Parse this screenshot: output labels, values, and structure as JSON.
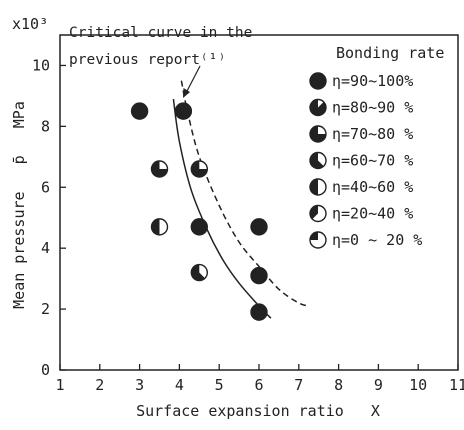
{
  "chart_data": {
    "type": "scatter",
    "exponent_label": "x10³",
    "xlabel": "Surface expansion ratio   X",
    "ylabel": "Mean pressure   p̄   MPa",
    "xlim": [
      1,
      11
    ],
    "ylim": [
      0,
      11
    ],
    "xticks": [
      "1",
      "2",
      "3",
      "4",
      "5",
      "6",
      "7",
      "8",
      "9",
      "10",
      "11"
    ],
    "yticks": [
      "0",
      "2",
      "4",
      "6",
      "8",
      "10"
    ],
    "annotation": [
      "Critical curve in the",
      "previous report⁽¹⁾"
    ],
    "legend_title": "Bonding rate",
    "series": [
      {
        "name": "η=90~100%",
        "fill": 1.0,
        "points": [
          [
            3.0,
            8.5
          ],
          [
            4.1,
            8.5
          ],
          [
            4.5,
            4.7
          ],
          [
            6.0,
            4.7
          ],
          [
            6.0,
            3.1
          ],
          [
            6.0,
            1.9
          ]
        ]
      },
      {
        "name": "η=80~90 %",
        "fill": 0.875,
        "points": []
      },
      {
        "name": "η=70~80 %",
        "fill": 0.75,
        "points": [
          [
            3.5,
            6.6
          ],
          [
            4.5,
            6.6
          ]
        ]
      },
      {
        "name": "η=60~70 %",
        "fill": 0.625,
        "points": [
          [
            4.5,
            3.2
          ]
        ]
      },
      {
        "name": "η=40~60 %",
        "fill": 0.5,
        "points": [
          [
            3.5,
            4.7
          ]
        ]
      },
      {
        "name": "η=20~40 %",
        "fill": 0.375,
        "points": []
      },
      {
        "name": "η=0 ~ 20 %",
        "fill": 0.25,
        "points": []
      }
    ],
    "curves": [
      {
        "name": "critical curve",
        "style": "solid",
        "points": [
          [
            3.85,
            8.9
          ],
          [
            4.0,
            7.5
          ],
          [
            4.3,
            5.9
          ],
          [
            4.7,
            4.6
          ],
          [
            5.1,
            3.6
          ],
          [
            5.5,
            2.85
          ],
          [
            6.0,
            2.1
          ],
          [
            6.3,
            1.7
          ]
        ]
      },
      {
        "name": "critical curve in the previous report",
        "style": "dashed",
        "points": [
          [
            4.05,
            9.5
          ],
          [
            4.2,
            8.5
          ],
          [
            4.5,
            7.0
          ],
          [
            5.0,
            5.4
          ],
          [
            5.5,
            4.2
          ],
          [
            6.0,
            3.4
          ],
          [
            6.5,
            2.65
          ],
          [
            7.0,
            2.2
          ],
          [
            7.25,
            2.1
          ]
        ]
      }
    ],
    "grid": false,
    "legend_position": "right"
  }
}
